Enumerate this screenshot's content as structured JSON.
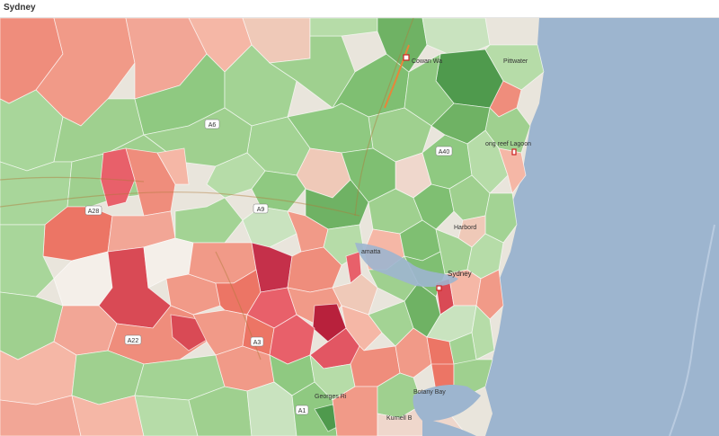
{
  "page": {
    "title": "Sydney"
  },
  "map": {
    "place_labels": [
      {
        "key": "sydney",
        "text": "Sydney"
      },
      {
        "key": "botany_bay",
        "text": "Botany Bay"
      },
      {
        "key": "cowan",
        "text": "Cowan Wa"
      },
      {
        "key": "pittwater",
        "text": "Pittwater"
      },
      {
        "key": "parramatta",
        "text": "amatta"
      },
      {
        "key": "harbord",
        "text": "Harbord"
      },
      {
        "key": "georges",
        "text": "Georges Ri"
      },
      {
        "key": "kurnell",
        "text": "Kurnell B"
      },
      {
        "key": "longreef",
        "text": "ong reef Lagoon"
      }
    ],
    "road_shields": [
      "A6",
      "A28",
      "A9",
      "A40",
      "A22",
      "A3",
      "A1"
    ],
    "colors": {
      "water": "#9db5cf",
      "land": "#e9e5dc",
      "green_light": "#c9e3bf",
      "green_mid": "#9fd08f",
      "green_dark": "#6fb264",
      "red_light": "#f5b7a6",
      "red_mid": "#ef8d7c",
      "red_dark": "#d94a55",
      "red_deep": "#b8213c",
      "neutral": "#f4efe9"
    }
  }
}
